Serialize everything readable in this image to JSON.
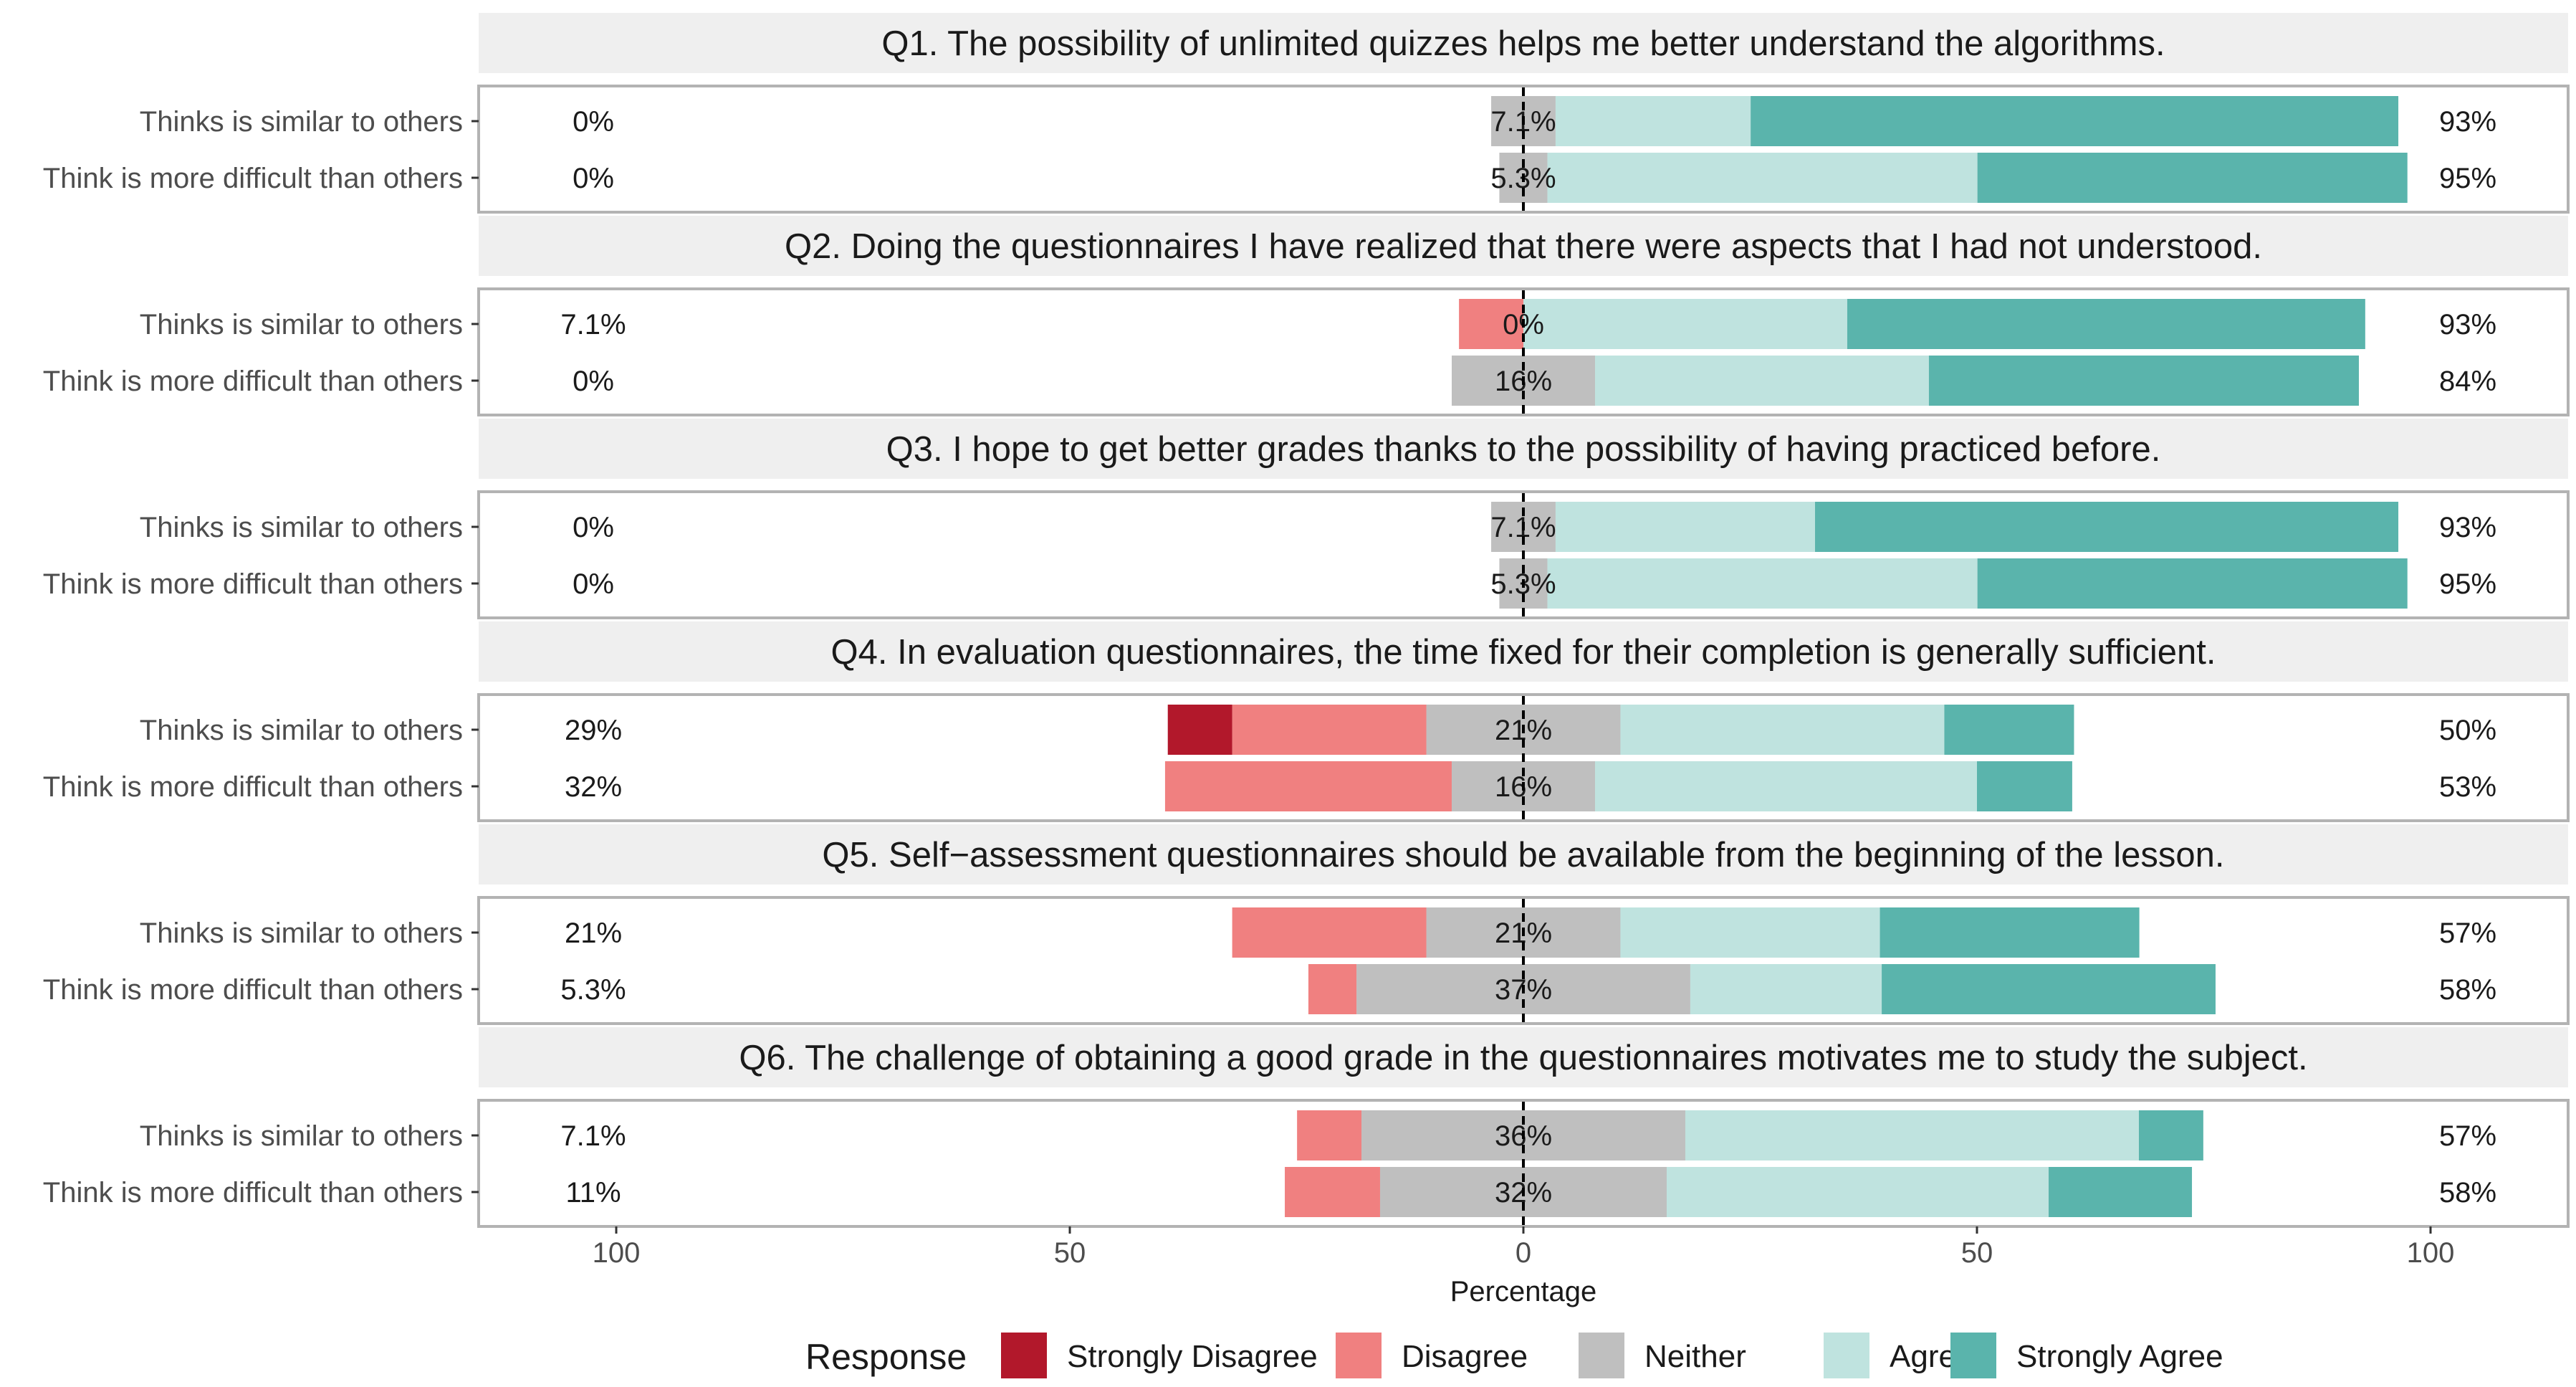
{
  "chart_data": {
    "type": "bar",
    "subtype": "diverging-stacked-likert",
    "xlabel": "Percentage",
    "xlim": [
      -100,
      100
    ],
    "xticks": [
      -100,
      -50,
      0,
      50,
      100
    ],
    "xtick_labels": [
      "100",
      "50",
      "0",
      "50",
      "100"
    ],
    "legend_title": "Response",
    "legend_position": "bottom",
    "levels": [
      "Strongly Disagree",
      "Disagree",
      "Neither",
      "Agree",
      "Strongly Agree"
    ],
    "colors": {
      "Strongly Disagree": "#b2182b",
      "Disagree": "#f08080",
      "Neither": "#bfbfbf",
      "Agree": "#bfe3df",
      "Strongly Agree": "#5ab4ac"
    },
    "row_labels": [
      "Thinks is similar to others",
      "Think is more difficult than others"
    ],
    "panels": [
      {
        "title": "Q1. The possibility of unlimited quizzes helps me better understand the algorithms.",
        "rows": [
          {
            "label": "Thinks is similar to others",
            "values": [
              0,
              0,
              7.1,
              21.5,
              71.4
            ],
            "low": "0%",
            "neutral": "7.1%",
            "high": "93%"
          },
          {
            "label": "Think is more difficult than others",
            "values": [
              0,
              0,
              5.3,
              47.4,
              47.4
            ],
            "low": "0%",
            "neutral": "5.3%",
            "high": "95%"
          }
        ]
      },
      {
        "title": "Q2. Doing the questionnaires I have realized that there were aspects that I had not understood.",
        "rows": [
          {
            "label": "Thinks is similar to others",
            "values": [
              0,
              7.1,
              0,
              35.7,
              57.1
            ],
            "low": "7.1%",
            "neutral": "0%",
            "high": "93%"
          },
          {
            "label": "Think is more difficult than others",
            "values": [
              0,
              0,
              15.8,
              36.8,
              47.4
            ],
            "low": "0%",
            "neutral": "16%",
            "high": "84%"
          }
        ]
      },
      {
        "title": "Q3. I hope to get better grades thanks to the possibility of having practiced before.",
        "rows": [
          {
            "label": "Thinks is similar to others",
            "values": [
              0,
              0,
              7.1,
              28.6,
              64.3
            ],
            "low": "0%",
            "neutral": "7.1%",
            "high": "93%"
          },
          {
            "label": "Think is more difficult than others",
            "values": [
              0,
              0,
              5.3,
              47.4,
              47.4
            ],
            "low": "0%",
            "neutral": "5.3%",
            "high": "95%"
          }
        ]
      },
      {
        "title": "Q4. In evaluation questionnaires, the time fixed for their completion is generally sufficient.",
        "rows": [
          {
            "label": "Thinks is similar to others",
            "values": [
              7.1,
              21.4,
              21.4,
              35.7,
              14.3
            ],
            "low": "29%",
            "neutral": "21%",
            "high": "50%"
          },
          {
            "label": "Think is more difficult than others",
            "values": [
              0,
              31.6,
              15.8,
              42.1,
              10.5
            ],
            "low": "32%",
            "neutral": "16%",
            "high": "53%"
          }
        ]
      },
      {
        "title": "Q5. Self−assessment questionnaires should be available from the beginning of the lesson.",
        "rows": [
          {
            "label": "Thinks is similar to others",
            "values": [
              0,
              21.4,
              21.4,
              28.6,
              28.6
            ],
            "low": "21%",
            "neutral": "21%",
            "high": "57%"
          },
          {
            "label": "Think is more difficult than others",
            "values": [
              0,
              5.3,
              36.8,
              21.1,
              36.8
            ],
            "low": "5.3%",
            "neutral": "37%",
            "high": "58%"
          }
        ]
      },
      {
        "title": "Q6. The challenge of obtaining a good grade in the questionnaires motivates me to study the subject.",
        "rows": [
          {
            "label": "Thinks is similar to others",
            "values": [
              0,
              7.1,
              35.7,
              50.0,
              7.1
            ],
            "low": "7.1%",
            "neutral": "36%",
            "high": "57%"
          },
          {
            "label": "Think is more difficult than others",
            "values": [
              0,
              10.5,
              31.6,
              42.1,
              15.8
            ],
            "low": "11%",
            "neutral": "32%",
            "high": "58%"
          }
        ]
      }
    ]
  }
}
